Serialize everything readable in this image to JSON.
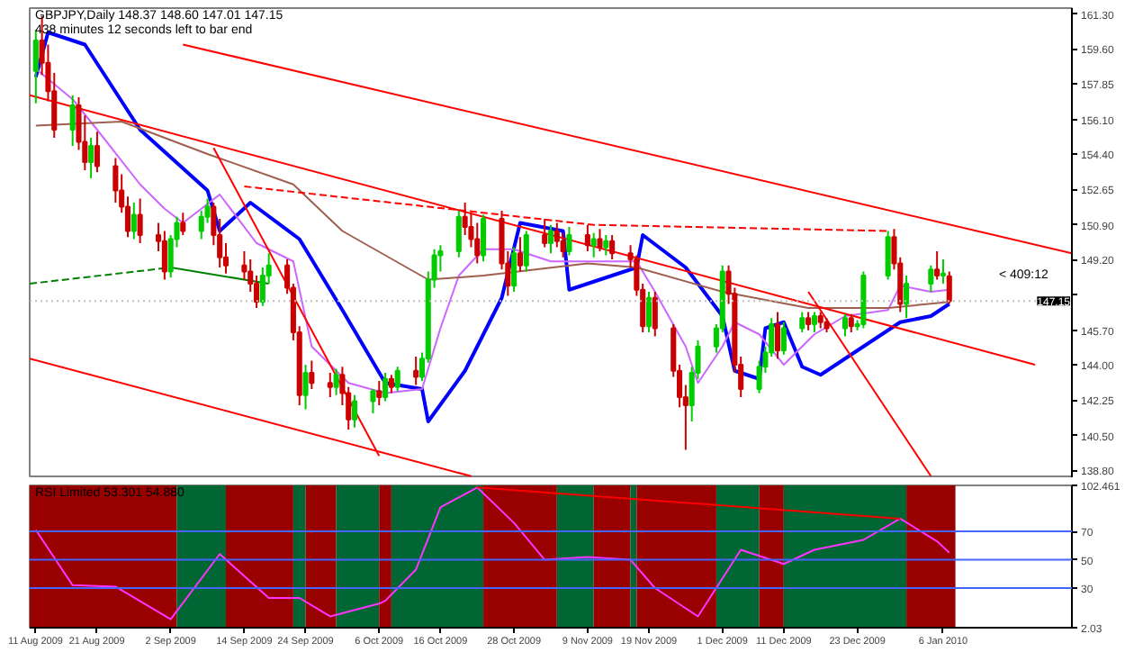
{
  "chart_data": [
    {
      "type": "candlestick",
      "title": "GBPJPY,Daily  148.37 148.60 147.01 147.15",
      "subtitle": "438 minutes 12 seconds left to bar end",
      "annotations": [
        "< 409:12"
      ],
      "tick_labels": "y",
      "grid": false,
      "xlim": [
        "2009-08-10",
        "2010-01-27"
      ],
      "ylim": [
        138.4,
        161.6
      ],
      "yticks": [
        {
          "value": 161.3,
          "label": "161.30"
        },
        {
          "value": 159.6,
          "label": "159.60"
        },
        {
          "value": 157.85,
          "label": "157.85"
        },
        {
          "value": 156.1,
          "label": "156.10"
        },
        {
          "value": 154.4,
          "label": "154.40"
        },
        {
          "value": 152.65,
          "label": "152.65"
        },
        {
          "value": 150.9,
          "label": "150.90"
        },
        {
          "value": 149.2,
          "label": "149.20"
        },
        {
          "value": 147.45,
          "label": null
        },
        {
          "value": 145.7,
          "label": "145.70"
        },
        {
          "value": 144.0,
          "label": "144.00"
        },
        {
          "value": 142.25,
          "label": "142.25"
        },
        {
          "value": 140.5,
          "label": "140.50"
        },
        {
          "value": 138.8,
          "label": "138.80"
        }
      ],
      "colors": [
        "#00cc00",
        "#cc0000",
        "#cc0000",
        "#cc0000",
        "#00cc00",
        "#cc0000",
        "#cc0000",
        "#00cc00",
        "#cc0000",
        "#cc0000",
        "#cc0000",
        "#cc0000",
        "#00cc00",
        "#cc0000",
        "#cc0000",
        "#cc0000",
        "#00cc00",
        "#00cc00",
        "#cc0000",
        "#00cc00",
        "#00cc00",
        "#cc0000",
        "#cc0000",
        "#cc0000",
        "#cc0000",
        "#cc0000",
        "#cc0000",
        "#00cc00",
        "#00cc00",
        "#cc0000",
        "#cc0000",
        "#cc0000",
        "#00cc00",
        "#cc0000",
        "#cc0000",
        "#00cc00",
        "#cc0000",
        "#cc0000",
        "#00cc00",
        "#00cc00",
        "#cc0000",
        "#00cc00",
        "#cc0000",
        "#00cc00",
        "#cc0000",
        "#00cc00",
        "#00cc00",
        "#00cc00",
        "#00cc00",
        "#00cc00",
        "#cc0000",
        "#cc0000",
        "#cc0000",
        "#00cc00",
        "#cc0000",
        "#cc0000",
        "#00cc00",
        "#cc0000",
        "#00cc00",
        "#cc0000",
        "#00cc00",
        "#cc0000",
        "#cc0000",
        "#00cc00",
        "#cc0000",
        "#00cc00",
        "#cc0000",
        "#00cc00",
        "#cc0000",
        "#cc0000",
        "#cc0000",
        "#cc0000",
        "#00cc00",
        "#cc0000",
        "#cc0000",
        "#cc0000",
        "#cc0000",
        "#00cc00",
        "#00cc00",
        "#00cc00",
        "#00cc00",
        "#cc0000",
        "#cc0000",
        "#cc0000",
        "#00cc00",
        "#00cc00",
        "#00cc00",
        "#cc0000",
        "#00cc00",
        "#00cc00",
        "#cc0000",
        "#00cc00",
        "#cc0000",
        "#cc0000",
        "#00cc00",
        "#cc0000",
        "#00cc00",
        "#00cc00",
        "#00cc00",
        "#cc0000",
        "#cc0000",
        "#00cc00",
        "#00cc00",
        "#cc0000",
        "#00cc00",
        "#cc0000"
      ],
      "ref_lines": [
        {
          "axis": "y",
          "value": 147.15,
          "label": "147.15",
          "color": "#c0c0c0",
          "line_style": "dotted"
        }
      ],
      "x": [
        "2009-08-11",
        "2009-08-12",
        "2009-08-13",
        "2009-08-14",
        "2009-08-17",
        "2009-08-18",
        "2009-08-19",
        "2009-08-20",
        "2009-08-21",
        "2009-08-24",
        "2009-08-25",
        "2009-08-26",
        "2009-08-27",
        "2009-08-28",
        "2009-08-31",
        "2009-09-01",
        "2009-09-02",
        "2009-09-03",
        "2009-09-04",
        "2009-09-07",
        "2009-09-08",
        "2009-09-09",
        "2009-09-10",
        "2009-09-11",
        "2009-09-14",
        "2009-09-15",
        "2009-09-16",
        "2009-09-17",
        "2009-09-18",
        "2009-09-21",
        "2009-09-22",
        "2009-09-23",
        "2009-09-24",
        "2009-09-25",
        "2009-09-28",
        "2009-09-29",
        "2009-09-30",
        "2009-10-01",
        "2009-10-02",
        "2009-10-05",
        "2009-10-06",
        "2009-10-07",
        "2009-10-08",
        "2009-10-09",
        "2009-10-12",
        "2009-10-13",
        "2009-10-14",
        "2009-10-15",
        "2009-10-16",
        "2009-10-19",
        "2009-10-20",
        "2009-10-21",
        "2009-10-22",
        "2009-10-23",
        "2009-10-26",
        "2009-10-27",
        "2009-10-28",
        "2009-10-29",
        "2009-10-30",
        "2009-11-02",
        "2009-11-03",
        "2009-11-04",
        "2009-11-05",
        "2009-11-06",
        "2009-11-09",
        "2009-11-10",
        "2009-11-11",
        "2009-11-12",
        "2009-11-13",
        "2009-11-16",
        "2009-11-17",
        "2009-11-18",
        "2009-11-19",
        "2009-11-20",
        "2009-11-23",
        "2009-11-24",
        "2009-11-25",
        "2009-11-26",
        "2009-11-27",
        "2009-11-30",
        "2009-12-01",
        "2009-12-02",
        "2009-12-03",
        "2009-12-04",
        "2009-12-07",
        "2009-12-08",
        "2009-12-09",
        "2009-12-10",
        "2009-12-11",
        "2009-12-14",
        "2009-12-15",
        "2009-12-16",
        "2009-12-17",
        "2009-12-18",
        "2009-12-21",
        "2009-12-22",
        "2009-12-23",
        "2009-12-24",
        "2009-12-28",
        "2009-12-29",
        "2009-12-30",
        "2009-12-31",
        "2010-01-04",
        "2010-01-05",
        "2010-01-06",
        "2010-01-07"
      ],
      "ohlc": [
        [
          158.5,
          160.5,
          156.9,
          160.0
        ],
        [
          160.0,
          161.2,
          158.3,
          158.9
        ],
        [
          158.9,
          159.8,
          157.0,
          157.5
        ],
        [
          157.5,
          158.4,
          155.2,
          155.6
        ],
        [
          155.6,
          157.3,
          154.8,
          156.8
        ],
        [
          156.8,
          157.2,
          154.6,
          155.0
        ],
        [
          155.0,
          156.3,
          153.6,
          154.0
        ],
        [
          154.0,
          155.2,
          153.2,
          154.8
        ],
        [
          154.8,
          155.5,
          153.5,
          153.8
        ],
        [
          153.8,
          154.2,
          152.0,
          152.6
        ],
        [
          152.6,
          153.4,
          151.5,
          151.8
        ],
        [
          151.8,
          152.3,
          150.3,
          150.6
        ],
        [
          150.6,
          152.0,
          150.2,
          151.4
        ],
        [
          151.4,
          152.2,
          150.0,
          150.4
        ],
        [
          150.4,
          151.0,
          149.6,
          150.1
        ],
        [
          150.1,
          150.6,
          148.2,
          148.6
        ],
        [
          148.6,
          150.4,
          148.3,
          150.2
        ],
        [
          150.2,
          151.3,
          149.8,
          151.0
        ],
        [
          151.0,
          151.5,
          150.4,
          150.6
        ],
        [
          150.6,
          151.6,
          150.2,
          151.3
        ],
        [
          151.3,
          152.2,
          151.0,
          151.8
        ],
        [
          151.8,
          152.0,
          149.9,
          150.4
        ],
        [
          150.4,
          151.2,
          148.8,
          149.3
        ],
        [
          149.3,
          150.0,
          148.5,
          148.9
        ],
        [
          148.9,
          149.6,
          148.2,
          148.6
        ],
        [
          148.6,
          149.2,
          147.6,
          148.0
        ],
        [
          148.0,
          148.4,
          146.8,
          147.1
        ],
        [
          147.1,
          148.8,
          146.9,
          148.4
        ],
        [
          148.4,
          149.5,
          148.0,
          148.9
        ],
        [
          148.9,
          149.2,
          147.5,
          147.8
        ],
        [
          147.8,
          148.0,
          145.2,
          145.6
        ],
        [
          145.6,
          145.9,
          142.0,
          142.5
        ],
        [
          142.5,
          144.0,
          141.8,
          143.6
        ],
        [
          143.6,
          144.2,
          142.8,
          143.1
        ],
        [
          143.1,
          143.6,
          142.4,
          142.9
        ],
        [
          142.9,
          143.8,
          142.5,
          143.5
        ],
        [
          143.5,
          143.9,
          142.0,
          142.6
        ],
        [
          142.6,
          142.9,
          140.8,
          141.3
        ],
        [
          141.3,
          142.5,
          140.9,
          142.2
        ],
        [
          142.2,
          142.8,
          141.6,
          142.7
        ],
        [
          142.7,
          143.2,
          142.0,
          142.4
        ],
        [
          142.4,
          143.6,
          142.2,
          143.3
        ],
        [
          143.3,
          143.5,
          142.6,
          142.9
        ],
        [
          142.9,
          143.9,
          142.7,
          143.7
        ],
        [
          143.7,
          144.4,
          143.0,
          143.4
        ],
        [
          143.4,
          144.6,
          143.2,
          144.3
        ],
        [
          144.3,
          148.6,
          144.1,
          148.2
        ],
        [
          148.2,
          149.7,
          147.8,
          149.4
        ],
        [
          149.4,
          149.9,
          148.6,
          149.6
        ],
        [
          149.6,
          151.6,
          149.3,
          151.3
        ],
        [
          151.3,
          152.0,
          150.4,
          150.8
        ],
        [
          150.8,
          151.5,
          149.8,
          150.2
        ],
        [
          150.2,
          151.0,
          149.0,
          149.4
        ],
        [
          149.4,
          151.4,
          149.1,
          151.2
        ],
        [
          151.2,
          151.6,
          148.7,
          149.0
        ],
        [
          149.0,
          149.6,
          147.4,
          147.9
        ],
        [
          147.9,
          149.8,
          147.6,
          149.5
        ],
        [
          149.5,
          150.3,
          148.6,
          148.9
        ],
        [
          148.9,
          150.6,
          148.6,
          150.4
        ],
        [
          150.4,
          151.2,
          149.8,
          150.0
        ],
        [
          150.0,
          150.9,
          149.5,
          150.6
        ],
        [
          150.6,
          151.0,
          149.8,
          150.1
        ],
        [
          150.1,
          150.5,
          149.3,
          149.6
        ],
        [
          149.6,
          150.8,
          149.4,
          150.4
        ],
        [
          150.4,
          150.9,
          149.6,
          149.9
        ],
        [
          149.9,
          150.5,
          149.3,
          150.2
        ],
        [
          150.2,
          150.7,
          149.6,
          149.8
        ],
        [
          149.8,
          150.4,
          149.4,
          150.1
        ],
        [
          150.1,
          150.4,
          149.2,
          149.5
        ],
        [
          149.5,
          149.9,
          148.8,
          149.2
        ],
        [
          149.2,
          149.4,
          147.4,
          147.7
        ],
        [
          147.7,
          148.0,
          145.6,
          145.9
        ],
        [
          145.9,
          147.6,
          145.6,
          147.3
        ],
        [
          147.3,
          147.6,
          145.4,
          145.8
        ],
        [
          145.8,
          146.0,
          143.4,
          143.7
        ],
        [
          143.7,
          144.0,
          141.9,
          142.4
        ],
        [
          142.4,
          143.0,
          139.8,
          142.0
        ],
        [
          142.0,
          143.9,
          141.2,
          143.6
        ],
        [
          143.6,
          145.2,
          143.3,
          144.9
        ],
        [
          144.9,
          146.0,
          144.6,
          145.8
        ],
        [
          145.8,
          148.9,
          145.6,
          148.6
        ],
        [
          148.6,
          148.9,
          147.0,
          147.5
        ],
        [
          147.5,
          147.8,
          143.6,
          144.0
        ],
        [
          144.0,
          144.4,
          142.4,
          142.8
        ],
        [
          142.8,
          144.2,
          142.6,
          143.9
        ],
        [
          143.9,
          144.9,
          143.6,
          144.6
        ],
        [
          144.6,
          146.3,
          144.4,
          146.0
        ],
        [
          146.0,
          146.6,
          144.3,
          144.7
        ],
        [
          144.7,
          146.1,
          144.5,
          145.8
        ],
        [
          145.8,
          146.6,
          145.6,
          146.3
        ],
        [
          146.3,
          146.6,
          145.7,
          146.0
        ],
        [
          146.0,
          146.6,
          145.6,
          146.4
        ],
        [
          146.4,
          146.6,
          145.8,
          146.1
        ],
        [
          146.1,
          146.3,
          145.6,
          145.8
        ],
        [
          145.8,
          146.5,
          145.4,
          146.3
        ],
        [
          146.3,
          146.5,
          145.6,
          145.9
        ],
        [
          145.9,
          146.2,
          145.7,
          146.0
        ],
        [
          146.0,
          148.6,
          145.8,
          148.4
        ],
        [
          148.4,
          150.6,
          148.2,
          150.3
        ],
        [
          150.3,
          150.7,
          148.7,
          149.0
        ],
        [
          149.0,
          149.3,
          146.6,
          147.0
        ],
        [
          147.0,
          148.4,
          146.3,
          148.0
        ],
        [
          148.0,
          148.9,
          147.6,
          148.7
        ],
        [
          148.7,
          149.6,
          148.2,
          148.4
        ],
        [
          148.4,
          149.2,
          148.0,
          148.5
        ],
        [
          148.37,
          148.6,
          147.01,
          147.15
        ]
      ],
      "series": [
        {
          "type": "line",
          "color": "#0000ff",
          "x": [
            "2009-08-11",
            "2009-08-13",
            "2009-08-19",
            "2009-08-28",
            "2009-09-08",
            "2009-09-10",
            "2009-09-15",
            "2009-09-23",
            "2009-09-30",
            "2009-10-07",
            "2009-10-13",
            "2009-10-14",
            "2009-10-20",
            "2009-10-26",
            "2009-10-29",
            "2009-11-05",
            "2009-11-06",
            "2009-11-17",
            "2009-11-18",
            "2009-11-25",
            "2009-12-01",
            "2009-12-03",
            "2009-12-07",
            "2009-12-08",
            "2009-12-11",
            "2009-12-14",
            "2009-12-17",
            "2009-12-24",
            "2009-12-30",
            "2010-01-04",
            "2010-01-07"
          ],
          "values": [
            158.2,
            160.4,
            159.8,
            155.6,
            152.6,
            150.6,
            152.0,
            150.2,
            146.7,
            143.1,
            142.8,
            141.2,
            143.7,
            147.3,
            151.0,
            150.6,
            147.7,
            148.8,
            150.4,
            148.8,
            146.4,
            143.7,
            143.3,
            145.8,
            146.1,
            143.9,
            143.5,
            144.9,
            146.1,
            146.4,
            147.0
          ]
        },
        {
          "type": "line",
          "color": "#cc66ff",
          "x": [
            "2009-08-11",
            "2009-08-17",
            "2009-08-21",
            "2009-08-28",
            "2009-09-01",
            "2009-09-04",
            "2009-09-10",
            "2009-09-16",
            "2009-09-22",
            "2009-09-25",
            "2009-10-01",
            "2009-10-07",
            "2009-10-13",
            "2009-10-16",
            "2009-10-19",
            "2009-10-23",
            "2009-10-28",
            "2009-11-03",
            "2009-11-17",
            "2009-11-20",
            "2009-11-25",
            "2009-11-27",
            "2009-12-01",
            "2009-12-03",
            "2009-12-07",
            "2009-12-11",
            "2009-12-16",
            "2009-12-21",
            "2009-12-28",
            "2009-12-30",
            "2010-01-04",
            "2010-01-07"
          ],
          "values": [
            158.6,
            157.1,
            155.6,
            152.9,
            151.7,
            151.0,
            152.4,
            150.0,
            149.1,
            144.9,
            143.1,
            142.6,
            142.8,
            145.8,
            148.4,
            149.7,
            149.7,
            149.1,
            149.1,
            147.6,
            144.9,
            143.1,
            144.9,
            146.1,
            145.5,
            144.0,
            145.5,
            146.4,
            146.7,
            147.9,
            147.6,
            147.7
          ]
        },
        {
          "type": "line",
          "color": "#a06050",
          "x": [
            "2009-08-11",
            "2009-08-25",
            "2009-09-08",
            "2009-09-22",
            "2009-09-30",
            "2009-10-14",
            "2009-10-23",
            "2009-11-09",
            "2009-11-17",
            "2009-12-01",
            "2009-12-15",
            "2009-12-28",
            "2010-01-07"
          ],
          "values": [
            155.8,
            156.0,
            154.4,
            152.9,
            150.6,
            148.2,
            148.4,
            149.0,
            148.8,
            147.6,
            146.8,
            146.8,
            147.1
          ]
        },
        {
          "type": "line",
          "color": "#ff0000",
          "x": [
            "2009-09-04",
            "2010-01-27"
          ],
          "values": [
            159.8,
            149.5
          ]
        },
        {
          "type": "line",
          "color": "#ff0000",
          "x": [
            "2009-08-10",
            "2010-01-21"
          ],
          "values": [
            157.3,
            144.0
          ]
        },
        {
          "type": "line",
          "color": "#ff0000",
          "x": [
            "2009-08-10",
            "2009-10-21"
          ],
          "values": [
            144.3,
            138.5
          ]
        },
        {
          "type": "line",
          "color": "#ff0000",
          "x": [
            "2009-09-09",
            "2009-10-06"
          ],
          "values": [
            154.7,
            139.5
          ]
        },
        {
          "type": "line",
          "color": "#ff0000",
          "x": [
            "2009-12-15",
            "2010-01-04"
          ],
          "values": [
            147.6,
            138.5
          ]
        },
        {
          "type": "line",
          "color": "#ff0000",
          "line_style": "dashed",
          "x": [
            "2009-09-14",
            "2009-11-10",
            "2009-12-28"
          ],
          "values": [
            152.8,
            150.9,
            150.6
          ]
        },
        {
          "type": "line",
          "color": "#008000",
          "line_style": "dashed",
          "x": [
            "2009-08-10",
            "2009-09-02"
          ],
          "values": [
            148.0,
            148.8
          ]
        },
        {
          "type": "line",
          "color": "#008000",
          "x": [
            "2009-09-02",
            "2009-09-18"
          ],
          "values": [
            148.8,
            148.0
          ]
        }
      ]
    },
    {
      "type": "line",
      "title": "RSI Limited 53.301 54.880",
      "grid": false,
      "xlim": [
        "2009-08-10",
        "2010-01-27"
      ],
      "ylim": [
        2.03,
        102.461
      ],
      "xticks": [
        {
          "value": "2009-08-11",
          "label": "11 Aug 2009"
        },
        {
          "value": "2009-08-21",
          "label": "21 Aug 2009"
        },
        {
          "value": "2009-09-02",
          "label": "2 Sep 2009"
        },
        {
          "value": "2009-09-14",
          "label": "14 Sep 2009"
        },
        {
          "value": "2009-09-24",
          "label": "24 Sep 2009"
        },
        {
          "value": "2009-10-06",
          "label": "6 Oct 2009"
        },
        {
          "value": "2009-10-16",
          "label": "16 Oct 2009"
        },
        {
          "value": "2009-10-28",
          "label": "28 Oct 2009"
        },
        {
          "value": "2009-11-09",
          "label": "9 Nov 2009"
        },
        {
          "value": "2009-11-19",
          "label": "19 Nov 2009"
        },
        {
          "value": "2009-12-01",
          "label": "1 Dec 2009"
        },
        {
          "value": "2009-12-11",
          "label": "11 Dec 2009"
        },
        {
          "value": "2009-12-23",
          "label": "23 Dec 2009"
        },
        {
          "value": "2010-01-06",
          "label": "6 Jan 2010"
        }
      ],
      "yticks": [
        {
          "value": 102.461,
          "label": "102.461"
        },
        70,
        50,
        30,
        {
          "value": 2.03,
          "label": "2.03"
        }
      ],
      "bands": [
        {
          "axis": "x",
          "from": "2009-08-10",
          "to": "2009-09-03",
          "color": "#990000"
        },
        {
          "axis": "x",
          "from": "2009-09-03",
          "to": "2009-09-11",
          "color": "#006633"
        },
        {
          "axis": "x",
          "from": "2009-09-11",
          "to": "2009-09-22",
          "color": "#990000"
        },
        {
          "axis": "x",
          "from": "2009-09-22",
          "to": "2009-09-24",
          "color": "#006633"
        },
        {
          "axis": "x",
          "from": "2009-09-24",
          "to": "2009-09-29",
          "color": "#990000"
        },
        {
          "axis": "x",
          "from": "2009-09-29",
          "to": "2009-10-06",
          "color": "#006633"
        },
        {
          "axis": "x",
          "from": "2009-10-06",
          "to": "2009-10-08",
          "color": "#990000"
        },
        {
          "axis": "x",
          "from": "2009-10-08",
          "to": "2009-10-23",
          "color": "#006633"
        },
        {
          "axis": "x",
          "from": "2009-10-23",
          "to": "2009-11-04",
          "color": "#990000"
        },
        {
          "axis": "x",
          "from": "2009-11-04",
          "to": "2009-11-10",
          "color": "#006633"
        },
        {
          "axis": "x",
          "from": "2009-11-10",
          "to": "2009-11-16",
          "color": "#990000"
        },
        {
          "axis": "x",
          "from": "2009-11-16",
          "to": "2009-11-17",
          "color": "#006633"
        },
        {
          "axis": "x",
          "from": "2009-11-17",
          "to": "2009-11-30",
          "color": "#990000"
        },
        {
          "axis": "x",
          "from": "2009-11-30",
          "to": "2009-12-07",
          "color": "#006633"
        },
        {
          "axis": "x",
          "from": "2009-12-07",
          "to": "2009-12-11",
          "color": "#990000"
        },
        {
          "axis": "x",
          "from": "2009-12-11",
          "to": "2009-12-31",
          "color": "#006633"
        },
        {
          "axis": "x",
          "from": "2009-12-31",
          "to": "2010-01-08",
          "color": "#990000"
        }
      ],
      "ref_lines": [
        {
          "axis": "y",
          "value": 70,
          "color": "#4466ff"
        },
        {
          "axis": "y",
          "value": 50,
          "color": "#4466ff"
        },
        {
          "axis": "y",
          "value": 30,
          "color": "#4466ff"
        }
      ],
      "series": [
        {
          "type": "line",
          "color": "#ff33ff",
          "x": [
            "2009-08-11",
            "2009-08-17",
            "2009-08-24",
            "2009-09-02",
            "2009-09-10",
            "2009-09-18",
            "2009-09-23",
            "2009-09-28",
            "2009-10-06",
            "2009-10-07",
            "2009-10-12",
            "2009-10-16",
            "2009-10-22",
            "2009-10-28",
            "2009-11-02",
            "2009-11-09",
            "2009-11-16",
            "2009-11-20",
            "2009-11-27",
            "2009-12-04",
            "2009-12-11",
            "2009-12-16",
            "2009-12-24",
            "2009-12-30",
            "2010-01-05",
            "2010-01-07"
          ],
          "values": [
            71,
            32,
            31,
            8,
            54,
            23,
            23,
            10,
            19,
            21,
            43,
            87,
            101,
            76,
            50,
            52,
            50,
            30,
            10,
            57,
            47,
            57,
            64,
            79,
            63,
            55
          ]
        },
        {
          "type": "line",
          "color": "#ff0000",
          "x": [
            "2009-10-22",
            "2009-12-30"
          ],
          "values": [
            101,
            79
          ]
        }
      ]
    }
  ]
}
